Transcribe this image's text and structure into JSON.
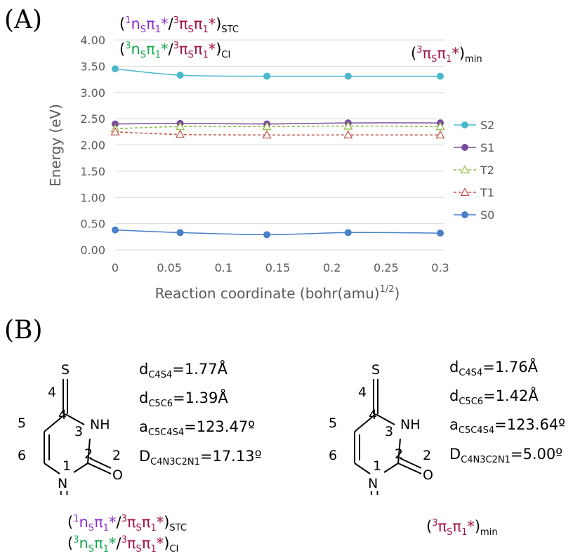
{
  "panel_a_label": "(A)",
  "panel_b_label": "(B)",
  "labels": {
    "stc": {
      "sup1": "1",
      "n": "n",
      "s1": "S",
      "pi1": "π",
      "one1": "1",
      "star1": "*",
      "slash": "/",
      "sup2": "3",
      "pi2": "π",
      "s2": "S",
      "pi3": "π",
      "one2": "1",
      "star2": "*",
      "sub": "STC"
    },
    "ci": {
      "sup1": "3",
      "n": "n",
      "s1": "S",
      "pi1": "π",
      "one1": "1",
      "star1": "*",
      "slash": "/",
      "sup2": "3",
      "pi2": "π",
      "s2": "S",
      "pi3": "π",
      "one2": "1",
      "star2": "*",
      "sub": "CI"
    },
    "min": {
      "sup1": "3",
      "pi1": "π",
      "s1": "S",
      "pi2": "π",
      "one1": "1",
      "star1": "*",
      "sub": "min"
    }
  },
  "chart_data": {
    "type": "line",
    "xlabel": "Reaction coordinate (bohr(amu)",
    "xlabel_sup": "1/2",
    "xlabel_close": ")",
    "ylabel": "Energy (eV)",
    "xlim": [
      0,
      0.3
    ],
    "ylim": [
      0,
      4.0
    ],
    "xticks": [
      "0",
      "0.05",
      "0.1",
      "0.15",
      "0.2",
      "0.25",
      "0.3"
    ],
    "xtick_values": [
      0,
      0.05,
      0.1,
      0.15,
      0.2,
      0.25,
      0.3
    ],
    "yticks": [
      "0.00",
      "0.50",
      "1.00",
      "1.50",
      "2.00",
      "2.50",
      "3.00",
      "3.50",
      "4.00"
    ],
    "ytick_values": [
      0,
      0.5,
      1.0,
      1.5,
      2.0,
      2.5,
      3.0,
      3.5,
      4.0
    ],
    "grid": "horizontal",
    "legend_position": "right",
    "x": [
      0,
      0.06,
      0.14,
      0.215,
      0.3
    ],
    "series": [
      {
        "name": "S2",
        "values": [
          3.45,
          3.33,
          3.31,
          3.31,
          3.31
        ],
        "color": "#4bb8cc",
        "marker": "circle",
        "dashed": false
      },
      {
        "name": "S1",
        "values": [
          2.4,
          2.41,
          2.4,
          2.42,
          2.42
        ],
        "color": "#7b4c9e",
        "marker": "circle",
        "dashed": false
      },
      {
        "name": "T2",
        "values": [
          2.31,
          2.35,
          2.35,
          2.36,
          2.35
        ],
        "color": "#8ebb3e",
        "marker": "triangle",
        "dashed": true
      },
      {
        "name": "T1",
        "values": [
          2.25,
          2.2,
          2.19,
          2.19,
          2.19
        ],
        "color": "#c0504d",
        "marker": "triangle",
        "dashed": true
      },
      {
        "name": "S0",
        "values": [
          0.38,
          0.33,
          0.29,
          0.33,
          0.32
        ],
        "color": "#4a7fca",
        "marker": "circle",
        "dashed": false
      }
    ]
  },
  "molecule": {
    "atom_s": "S",
    "atom_nh": "NH",
    "atom_o": "O",
    "atom_h": "H",
    "num4": "4",
    "num4b": "4",
    "num5": "5",
    "num3": "3",
    "num6": "6",
    "num1": "1",
    "num2": "2",
    "num2b": "2"
  },
  "params_left": [
    {
      "var": "d",
      "sub": "C4S4",
      "val": "=1.77Å"
    },
    {
      "var": "d",
      "sub": "C5C6",
      "val": "=1.39Å"
    },
    {
      "var": "a",
      "sub": "C5C4S4",
      "val": "=123.47º"
    },
    {
      "var": "D",
      "sub": "C4N3C2N1",
      "val": "=17.13º"
    }
  ],
  "params_right": [
    {
      "var": "d",
      "sub": "C4S4",
      "val": "=1.76Å"
    },
    {
      "var": "d",
      "sub": "C5C6",
      "val": "=1.42Å"
    },
    {
      "var": "a",
      "sub": "C5C4S4",
      "val": "=123.64º"
    },
    {
      "var": "D",
      "sub": "C4N3C2N1",
      "val": "=5.00º"
    }
  ]
}
